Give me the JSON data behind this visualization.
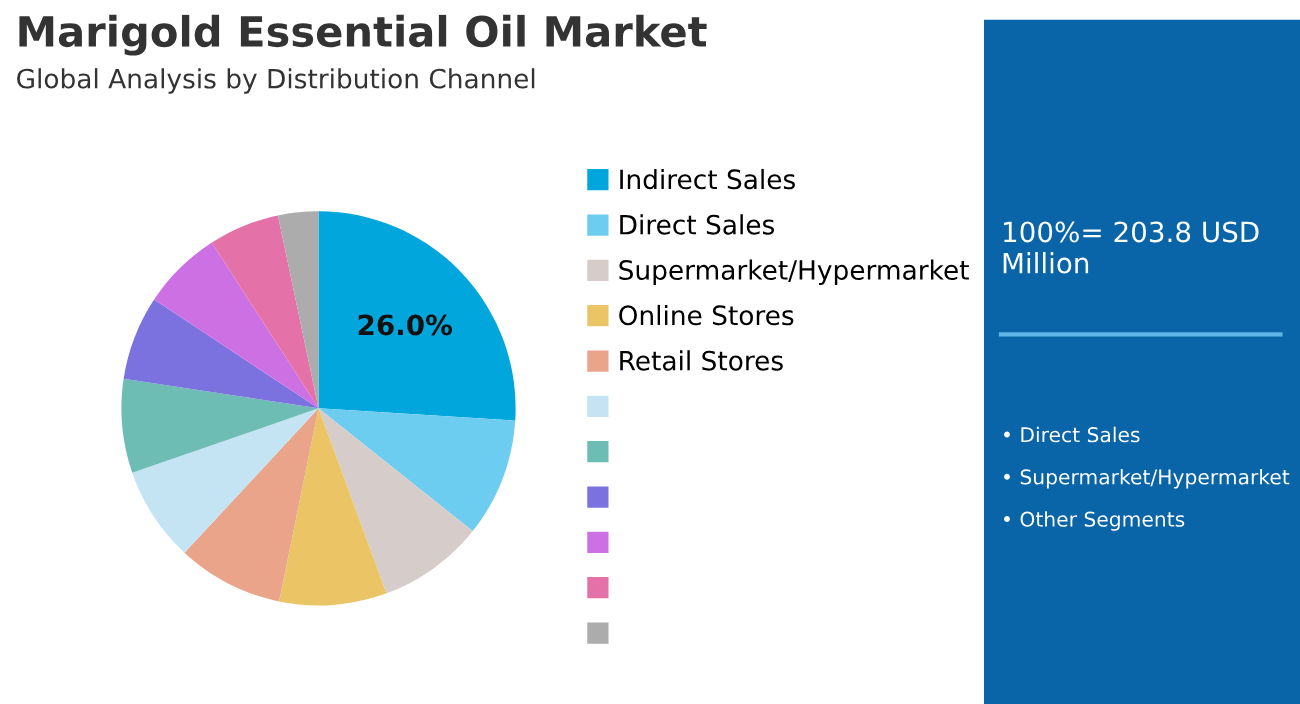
{
  "chart_data": {
    "type": "pie",
    "title": "Marigold Essential Oil Market",
    "subtitle": "Global Analysis by Distribution Channel",
    "categories": [
      "Indirect Sales",
      "Direct Sales",
      "Supermarket/Hypermarket",
      "Online Stores",
      "Retail Stores",
      null,
      null,
      null,
      null,
      null,
      null
    ],
    "values": [
      26.0,
      9.7,
      8.7,
      8.8,
      8.7,
      7.8,
      7.7,
      6.9,
      6.6,
      5.8,
      3.3
    ],
    "value_labels": [
      "26.0%",
      null,
      null,
      null,
      null,
      null,
      null,
      null,
      null,
      null,
      null
    ],
    "colors": [
      "#00a6dc",
      "#6dcdf0",
      "#d6ccca",
      "#ebc565",
      "#e9a48a",
      "#c4e3f3",
      "#6dbdb5",
      "#7b72e0",
      "#cc70e3",
      "#e471a8",
      "#acacac"
    ],
    "legend": "right",
    "annotations": [
      "100%= 203.8 USD Million",
      "• Direct Sales",
      "• Supermarket/Hypermarket",
      "• Other Segments"
    ]
  }
}
